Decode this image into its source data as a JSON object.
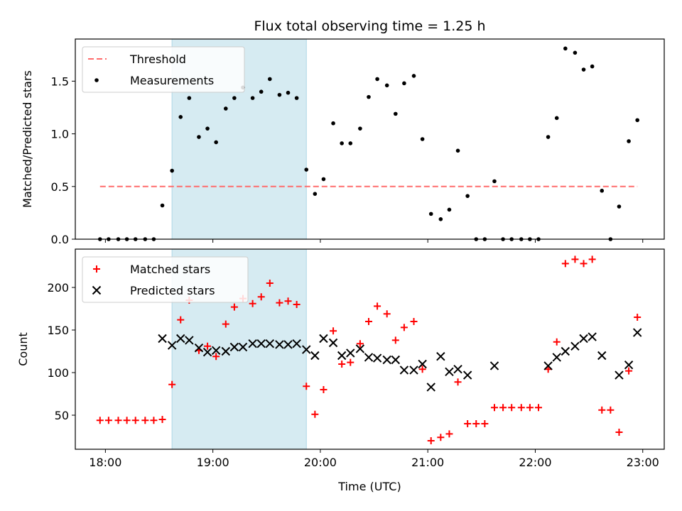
{
  "chart_data": [
    {
      "type": "scatter",
      "title": "Flux total observing time = 1.25 h",
      "ylabel": "Matched/Predicted stars",
      "xlabel": "",
      "xlim": [
        17.72,
        23.2
      ],
      "ylim": [
        0,
        1.9
      ],
      "yticks": [
        0.0,
        0.5,
        1.0,
        1.5
      ],
      "ytick_labels": [
        "0.0",
        "0.5",
        "1.0",
        "1.5"
      ],
      "shaded_span": {
        "x0": 18.62,
        "x1": 19.87,
        "color": "#add8e6"
      },
      "legend_position": "upper-left",
      "series": [
        {
          "name": "Threshold",
          "kind": "line",
          "style": "dashed",
          "color": "#ff6b6b",
          "x": [
            17.95,
            22.95
          ],
          "y": [
            0.5,
            0.5
          ]
        },
        {
          "name": "Measurements",
          "kind": "scatter",
          "marker": "dot",
          "color": "#000000",
          "x": [
            17.95,
            18.03,
            18.12,
            18.2,
            18.28,
            18.37,
            18.45,
            18.53,
            18.62,
            18.7,
            18.78,
            18.87,
            18.95,
            19.03,
            19.12,
            19.2,
            19.28,
            19.37,
            19.45,
            19.53,
            19.62,
            19.7,
            19.78,
            19.87,
            19.95,
            20.03,
            20.12,
            20.2,
            20.28,
            20.37,
            20.45,
            20.53,
            20.62,
            20.7,
            20.78,
            20.87,
            20.95,
            21.03,
            21.12,
            21.2,
            21.28,
            21.37,
            21.45,
            21.53,
            21.62,
            21.7,
            21.78,
            21.87,
            21.95,
            22.03,
            22.12,
            22.2,
            22.28,
            22.37,
            22.45,
            22.53,
            22.62,
            22.7,
            22.78,
            22.87,
            22.95
          ],
          "y": [
            0.0,
            0.0,
            0.0,
            0.0,
            0.0,
            0.0,
            0.0,
            0.32,
            0.65,
            1.16,
            1.34,
            0.97,
            1.05,
            0.92,
            1.24,
            1.34,
            1.44,
            1.34,
            1.4,
            1.52,
            1.37,
            1.39,
            1.34,
            0.66,
            0.43,
            0.57,
            1.1,
            0.91,
            0.91,
            1.05,
            1.35,
            1.52,
            1.46,
            1.19,
            1.48,
            1.55,
            0.95,
            0.24,
            0.19,
            0.28,
            0.84,
            0.41,
            0.0,
            0.0,
            0.55,
            0.0,
            0.0,
            0.0,
            0.0,
            0.0,
            0.97,
            1.15,
            1.81,
            1.77,
            1.61,
            1.64,
            0.46,
            0.0,
            0.31,
            0.93,
            1.13
          ]
        }
      ]
    },
    {
      "type": "scatter",
      "title": "",
      "ylabel": "Count",
      "xlabel": "Time (UTC)",
      "xlim": [
        17.72,
        23.2
      ],
      "ylim": [
        10,
        245
      ],
      "xticks": [
        18,
        19,
        20,
        21,
        22,
        23
      ],
      "xtick_labels": [
        "18:00",
        "19:00",
        "20:00",
        "21:00",
        "22:00",
        "23:00"
      ],
      "yticks": [
        50,
        100,
        150,
        200
      ],
      "ytick_labels": [
        "50",
        "100",
        "150",
        "200"
      ],
      "shaded_span": {
        "x0": 18.62,
        "x1": 19.87,
        "color": "#add8e6"
      },
      "legend_position": "upper-left",
      "series": [
        {
          "name": "Matched stars",
          "kind": "scatter",
          "marker": "plus",
          "color": "#ff0000",
          "x": [
            17.95,
            18.03,
            18.12,
            18.2,
            18.28,
            18.37,
            18.45,
            18.53,
            18.62,
            18.7,
            18.78,
            18.87,
            18.95,
            19.03,
            19.12,
            19.2,
            19.28,
            19.37,
            19.45,
            19.53,
            19.62,
            19.7,
            19.78,
            19.87,
            19.95,
            20.03,
            20.12,
            20.2,
            20.28,
            20.37,
            20.45,
            20.53,
            20.62,
            20.7,
            20.78,
            20.87,
            20.95,
            21.03,
            21.12,
            21.2,
            21.28,
            21.37,
            21.45,
            21.53,
            21.62,
            21.7,
            21.78,
            21.87,
            21.95,
            22.03,
            22.12,
            22.2,
            22.28,
            22.37,
            22.45,
            22.53,
            22.62,
            22.7,
            22.78,
            22.87,
            22.95
          ],
          "y": [
            44,
            44,
            44,
            44,
            44,
            44,
            44,
            45,
            86,
            162,
            185,
            126,
            131,
            119,
            157,
            177,
            187,
            181,
            189,
            205,
            182,
            184,
            180,
            84,
            51,
            80,
            149,
            110,
            112,
            134,
            160,
            178,
            169,
            138,
            153,
            160,
            104,
            20,
            24,
            28,
            89,
            40,
            40,
            40,
            59,
            59,
            59,
            59,
            59,
            59,
            104,
            136,
            228,
            233,
            228,
            233,
            56,
            56,
            30,
            102,
            165
          ]
        },
        {
          "name": "Predicted stars",
          "kind": "scatter",
          "marker": "x",
          "color": "#000000",
          "x": [
            18.53,
            18.62,
            18.7,
            18.78,
            18.87,
            18.95,
            19.03,
            19.12,
            19.2,
            19.28,
            19.37,
            19.45,
            19.53,
            19.62,
            19.7,
            19.78,
            19.87,
            19.95,
            20.03,
            20.12,
            20.2,
            20.28,
            20.37,
            20.45,
            20.53,
            20.62,
            20.7,
            20.78,
            20.87,
            20.95,
            21.03,
            21.12,
            21.2,
            21.28,
            21.37,
            21.62,
            22.12,
            22.2,
            22.28,
            22.37,
            22.45,
            22.53,
            22.62,
            22.78,
            22.87,
            22.95
          ],
          "y": [
            140,
            132,
            140,
            138,
            129,
            124,
            126,
            125,
            130,
            130,
            134,
            134,
            134,
            133,
            133,
            134,
            127,
            120,
            140,
            135,
            120,
            123,
            128,
            118,
            117,
            115,
            115,
            103,
            103,
            110,
            83,
            119,
            101,
            104,
            97,
            108,
            108,
            118,
            125,
            131,
            140,
            142,
            120,
            97,
            109,
            147
          ]
        }
      ]
    }
  ]
}
